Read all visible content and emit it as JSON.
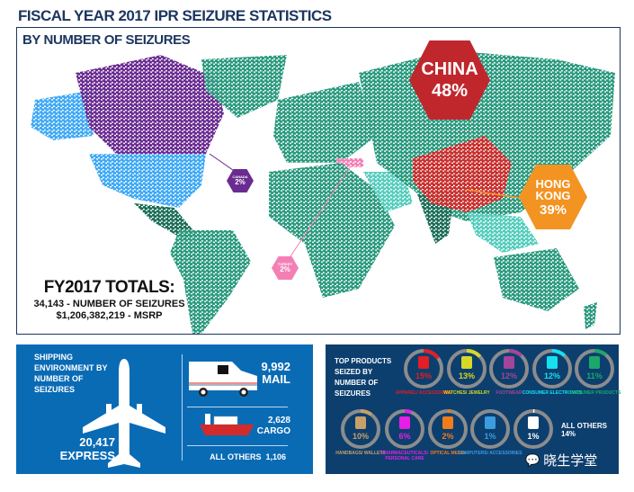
{
  "title": "FISCAL YEAR 2017 IPR SEIZURE STATISTICS",
  "map": {
    "subtitle": "BY NUMBER OF SEIZURES",
    "colors": {
      "default": "#2a9a7e",
      "dark": "#1b6e57",
      "light": "#55cdbd",
      "united_states": "#3fa9f5",
      "canada": "#6a2c91",
      "china": "#d12d2d",
      "turkey": "#f47fb4",
      "hong_kong": "#f39322"
    },
    "callouts": [
      {
        "country": "CHINA",
        "percent": "48%"
      },
      {
        "country": "HONG KONG",
        "percent": "39%"
      },
      {
        "country": "CANADA",
        "percent": "2%"
      },
      {
        "country": "TURKEY",
        "percent": "2%"
      }
    ],
    "totals": {
      "heading": "FY2017 TOTALS:",
      "seizures": "34,143 -  NUMBER OF SEIZURES",
      "msrp": "$1,206,382,219  -  MSRP"
    }
  },
  "shipping": {
    "heading": "SHIPPING ENVIRONMENT BY NUMBER OF SEIZURES",
    "express": {
      "value": "20,417",
      "label": "EXPRESS"
    },
    "mail": {
      "value": "9,992",
      "label": "MAIL"
    },
    "cargo": {
      "value": "2,628",
      "label": "CARGO"
    },
    "others": "ALL OTHERS  1,106"
  },
  "products": {
    "heading": "TOP PRODUCTS SEIZED BY NUMBER OF SEIZURES",
    "items": [
      {
        "label": "APPAREL/ ACCESSORIES",
        "percent": "15%",
        "value": 15,
        "color": "#e31e24",
        "icon": "shirt-icon"
      },
      {
        "label": "WATCHES/ JEWELRY",
        "percent": "13%",
        "value": 13,
        "color": "#d8d826",
        "icon": "watch-icon"
      },
      {
        "label": "FOOTWEAR",
        "percent": "12%",
        "value": 12,
        "color": "#a4449a",
        "icon": "shoe-icon"
      },
      {
        "label": "CONSUMER ELECTRONICS",
        "percent": "12%",
        "value": 12,
        "color": "#16e0f0",
        "icon": "phone-icon"
      },
      {
        "label": "CONSUMER PRODUCTS",
        "percent": "11%",
        "value": 11,
        "color": "#1aa86b",
        "icon": "spray-bottle-icon"
      },
      {
        "label": "HANDBAGS/ WALLETS",
        "percent": "10%",
        "value": 10,
        "color": "#c8a06a",
        "icon": "handbag-icon"
      },
      {
        "label": "PHARMACEUTICALS/ PERSONAL CARE",
        "percent": "6%",
        "value": 6,
        "color": "#e61ee6",
        "icon": "pill-icon"
      },
      {
        "label": "OPTICAL MEDIA",
        "percent": "2%",
        "value": 2,
        "color": "#f07d1a",
        "icon": "disc-icon"
      },
      {
        "label": "COMPUTERS/ ACCESSORIES",
        "percent": "1%",
        "value": 1,
        "color": "#3c9ce0",
        "icon": "computer-icon"
      },
      {
        "label": "",
        "percent": "1%",
        "value": 1,
        "color": "#ffffff",
        "icon": "teddy-bear-icon"
      }
    ],
    "others": "ALL OTHERS 14%",
    "watermark": "晓生学堂"
  }
}
